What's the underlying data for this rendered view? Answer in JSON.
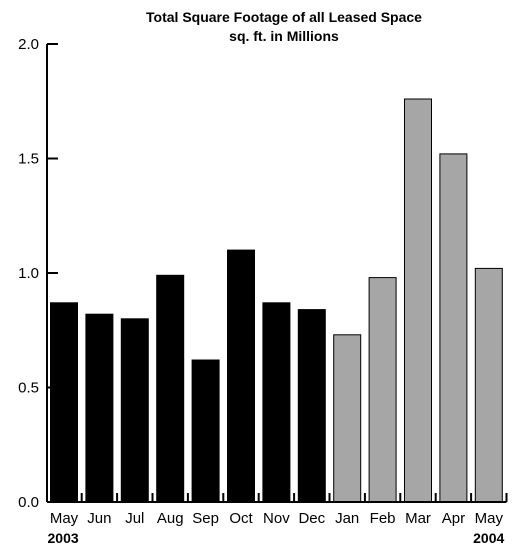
{
  "chart_data": {
    "type": "bar",
    "title": "Total Square Footage of all Leased Space",
    "subtitle": "sq. ft. in Millions",
    "xlabel": "",
    "ylabel": "",
    "categories": [
      "May",
      "Jun",
      "Jul",
      "Aug",
      "Sep",
      "Oct",
      "Nov",
      "Dec",
      "Jan",
      "Feb",
      "Mar",
      "Apr",
      "May"
    ],
    "values": [
      0.87,
      0.82,
      0.8,
      0.99,
      0.62,
      1.1,
      0.87,
      0.84,
      0.73,
      0.98,
      1.76,
      1.52,
      1.02
    ],
    "groups": [
      {
        "label": "2003",
        "start": 0,
        "end": 7,
        "color": "#000000"
      },
      {
        "label": "2004",
        "start": 8,
        "end": 12,
        "color": "#a6a6a6"
      }
    ],
    "ylim": [
      0,
      2.0
    ],
    "yticks": [
      "0.0",
      "0.5",
      "1.0",
      "1.5",
      "2.0"
    ],
    "grid": false,
    "legend": "none",
    "colors": {
      "bar_2003": "#000000",
      "bar_2004": "#a6a6a6",
      "axis": "#000000"
    }
  }
}
